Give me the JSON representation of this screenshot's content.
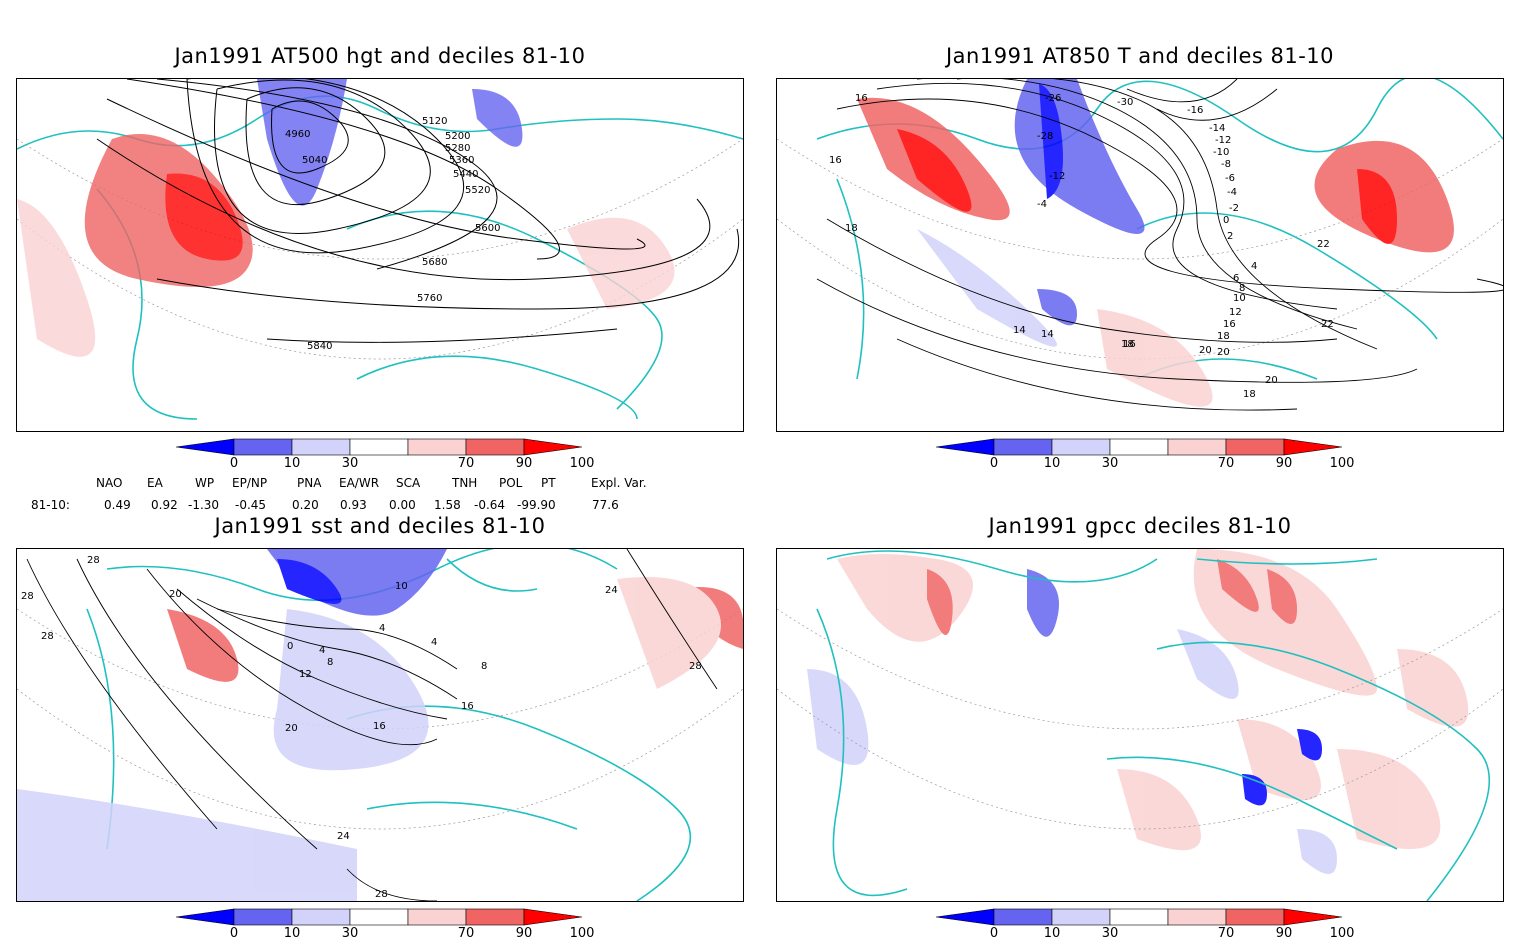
{
  "panels": [
    {
      "title": "Jan1991 AT500 hgt and deciles 81-10",
      "contour_labels": [
        "4960",
        "5040",
        "5120",
        "5200",
        "5280",
        "5360",
        "5440",
        "5520",
        "5600",
        "5680",
        "5760",
        "5840"
      ]
    },
    {
      "title": "Jan1991 AT850 T and deciles 81-10",
      "contour_labels": [
        "16",
        "16",
        "18",
        "-26",
        "-28",
        "-30",
        "-16",
        "-14",
        "-12",
        "-10",
        "-8",
        "-6",
        "-4",
        "-2",
        "0",
        "2",
        "4",
        "6",
        "8",
        "10",
        "12",
        "14",
        "16",
        "18",
        "20",
        "22",
        "-4",
        "-12",
        "14",
        "16",
        "18",
        "20",
        "18",
        "20",
        "22"
      ]
    },
    {
      "title": "Jan1991 sst and deciles 81-10",
      "contour_labels": [
        "28",
        "28",
        "28",
        "20",
        "0",
        "4",
        "8",
        "12",
        "16",
        "20",
        "24",
        "28",
        "4",
        "8",
        "16",
        "24",
        "28",
        "4",
        "10"
      ]
    },
    {
      "title": "Jan1991 gpcc deciles 81-10",
      "contour_labels": []
    }
  ],
  "colorbar": {
    "labels": [
      "0",
      "10",
      "30",
      "70",
      "90",
      "100"
    ],
    "colors": [
      "#0000ff",
      "#6464f0",
      "#d2d2fa",
      "#ffffff",
      "#fad2d2",
      "#f06464",
      "#ff0000"
    ]
  },
  "indices": {
    "headers": [
      "NAO",
      "EA",
      "WP",
      "EP/NP",
      "PNA",
      "EA/WR",
      "SCA",
      "TNH",
      "POL",
      "PT",
      "Expl. Var."
    ],
    "row_label": "81-10:",
    "values": [
      "0.49",
      "0.92",
      "-1.30",
      "-0.45",
      "0.20",
      "0.93",
      "0.00",
      "1.58",
      "-0.64",
      "-99.90",
      "77.6"
    ]
  }
}
